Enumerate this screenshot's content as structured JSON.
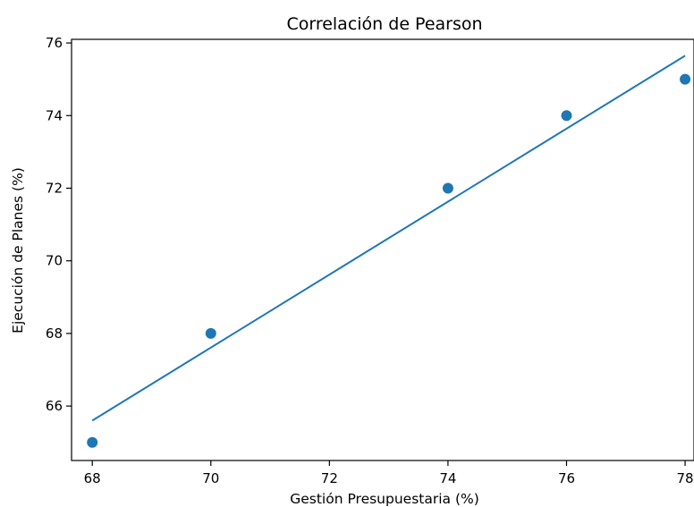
{
  "chart_data": {
    "type": "scatter",
    "title": "Correlación de Pearson",
    "xlabel": "Gestión Presupuestaria (%)",
    "ylabel": "Ejecución de Planes (%)",
    "xlim": [
      67.65,
      78.15
    ],
    "ylim": [
      64.5,
      76.1
    ],
    "x_ticks": [
      68,
      70,
      72,
      74,
      76,
      78
    ],
    "y_ticks": [
      66,
      68,
      70,
      72,
      74,
      76
    ],
    "grid": false,
    "series": [
      {
        "type": "scatter",
        "color": "#1f77b4",
        "points": [
          {
            "x": 68,
            "y": 65
          },
          {
            "x": 70,
            "y": 68
          },
          {
            "x": 74,
            "y": 72
          },
          {
            "x": 76,
            "y": 74
          },
          {
            "x": 78,
            "y": 75
          }
        ]
      },
      {
        "type": "line",
        "color": "#1f77b4",
        "points": [
          {
            "x": 68,
            "y": 65.6
          },
          {
            "x": 78,
            "y": 75.65
          }
        ]
      }
    ]
  }
}
